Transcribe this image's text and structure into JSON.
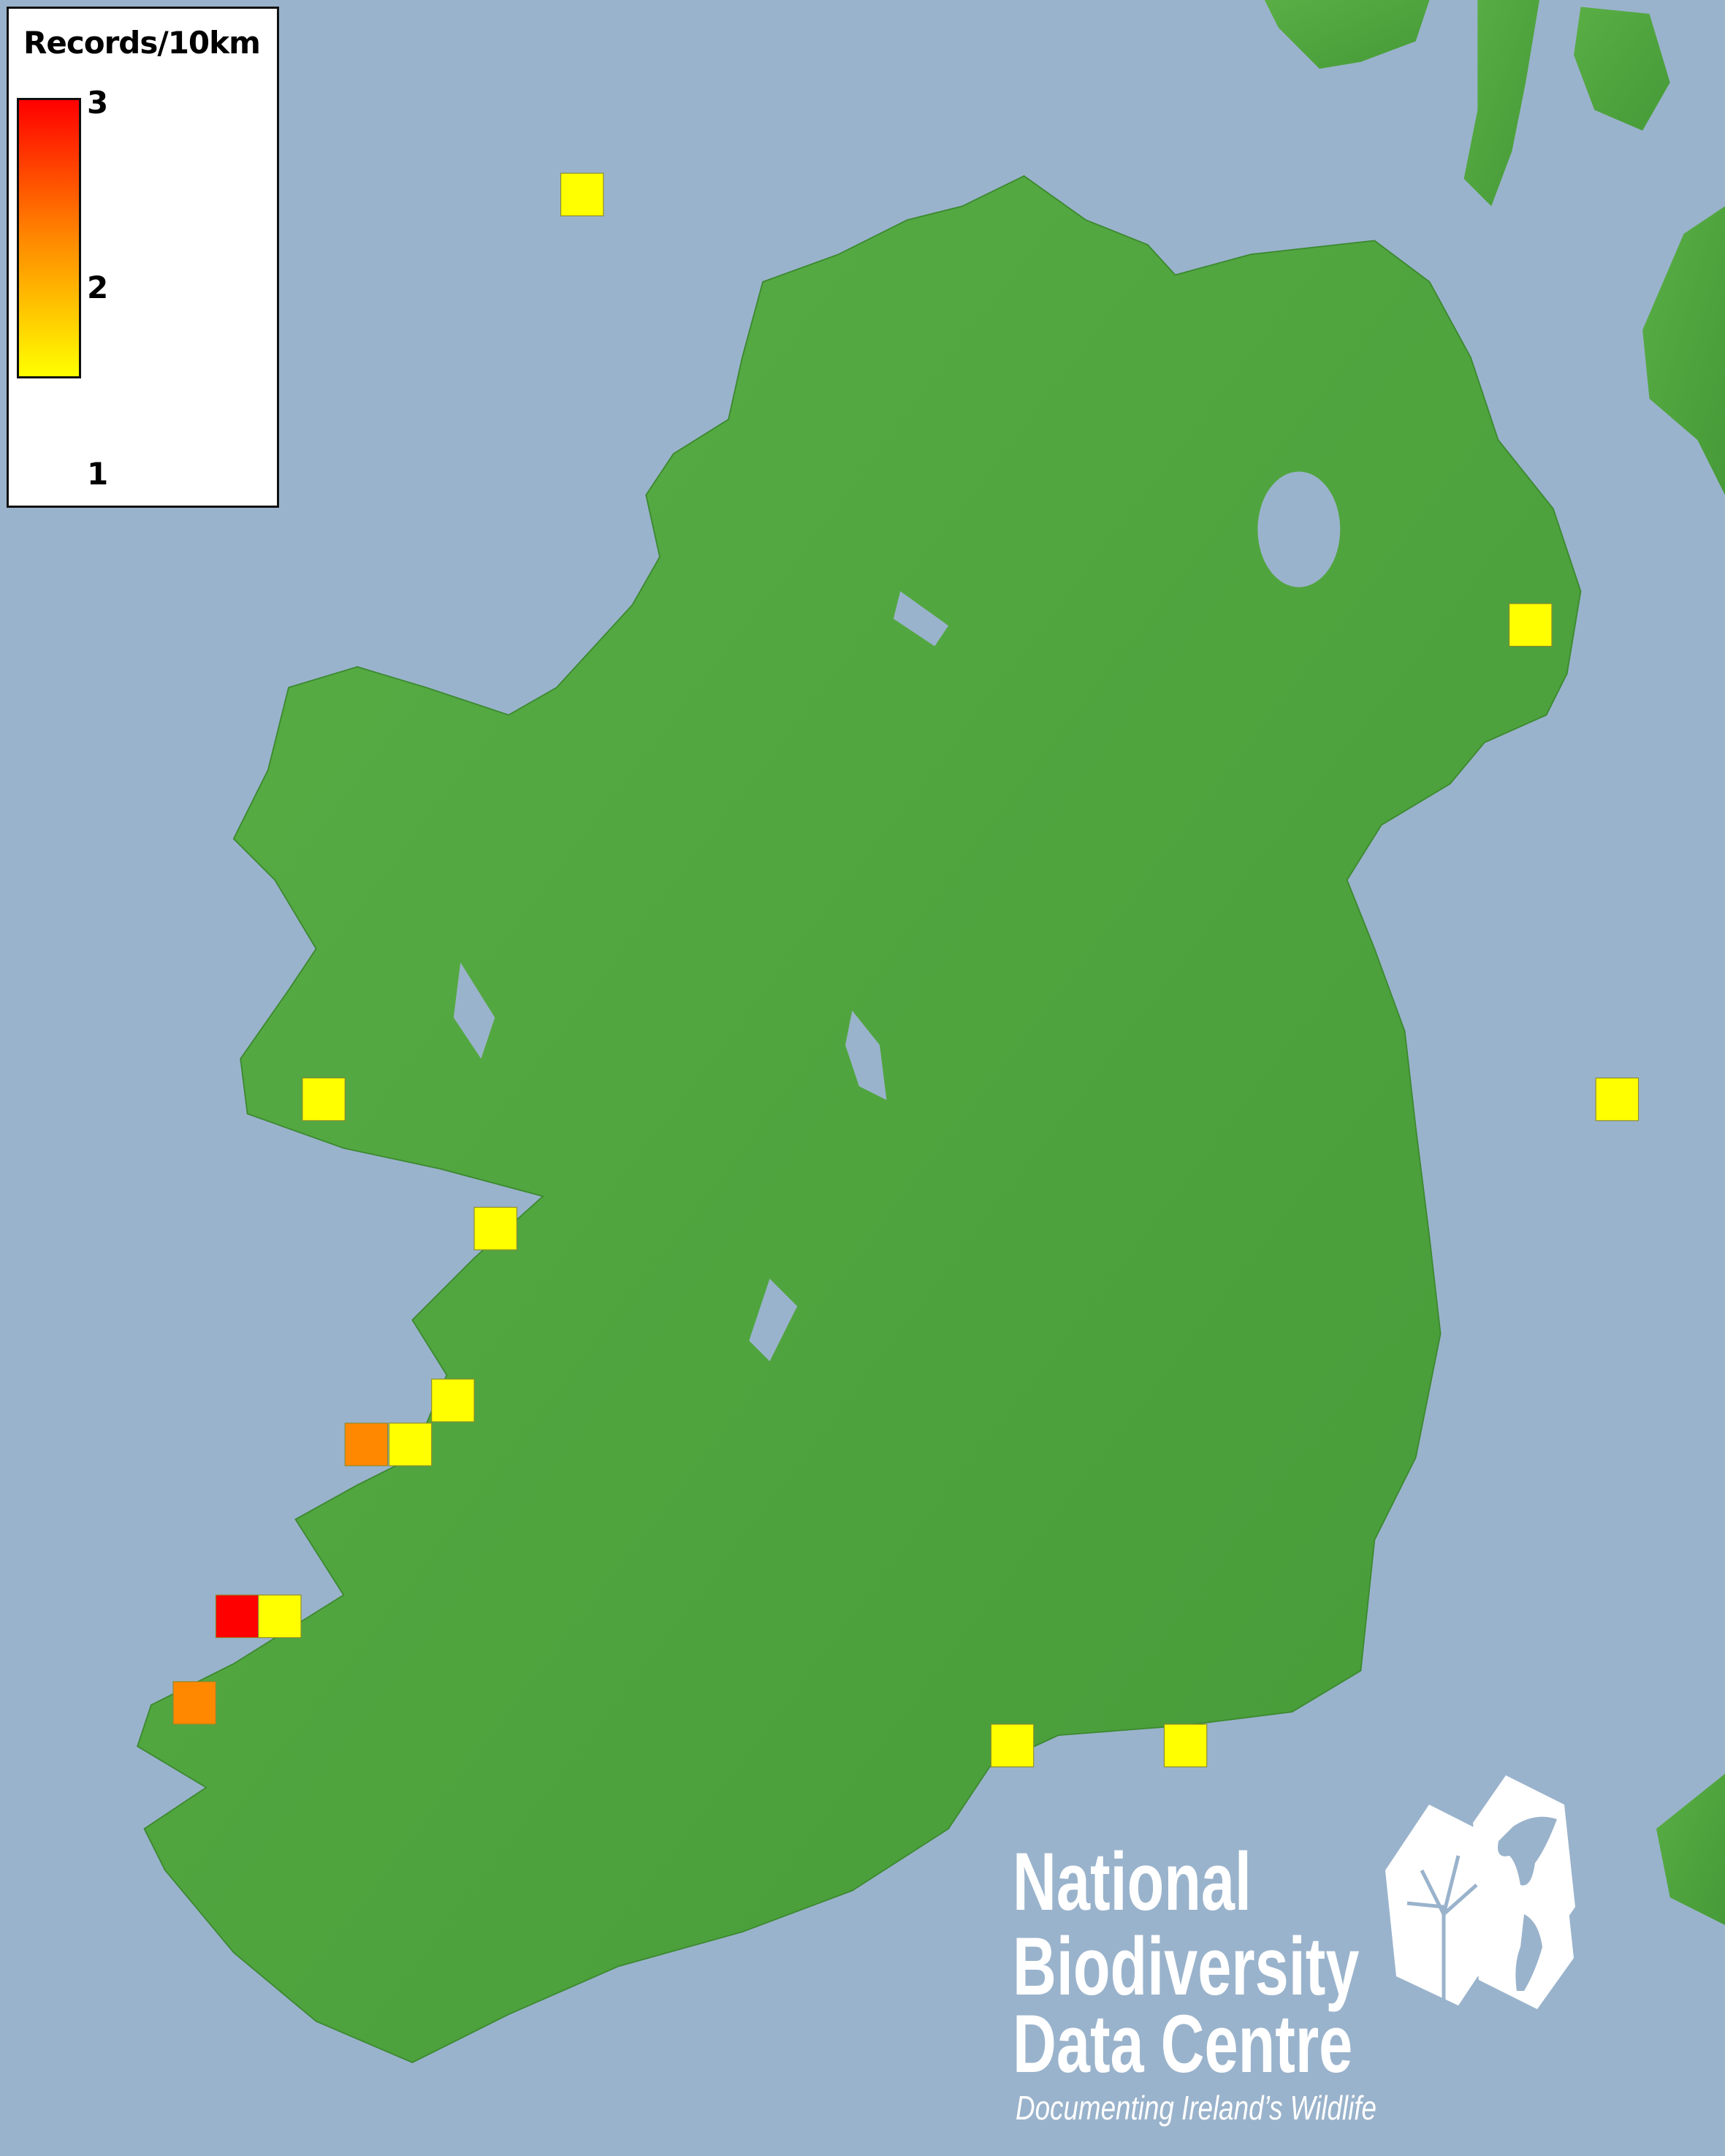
{
  "legend": {
    "title": "Records/10km",
    "ticks": [
      "3",
      "2",
      "1"
    ],
    "color_max": "#ff0000",
    "color_mid": "#ff8800",
    "color_min": "#ffff00"
  },
  "colors": {
    "sea": "#9ab3cc",
    "land": "#4ea63e",
    "water_bodies": "#9ab3cc"
  },
  "records": [
    1,
    1,
    1,
    1,
    1,
    1,
    2,
    1,
    3,
    1,
    2,
    1,
    1
  ],
  "logo": {
    "line1": "National",
    "line2": "Biodiversity",
    "line3": "Data Centre",
    "tagline": "Documenting Ireland’s Wildlife",
    "icons": [
      "tree-icon",
      "butterfly-icon",
      "seahorse-icon"
    ]
  }
}
